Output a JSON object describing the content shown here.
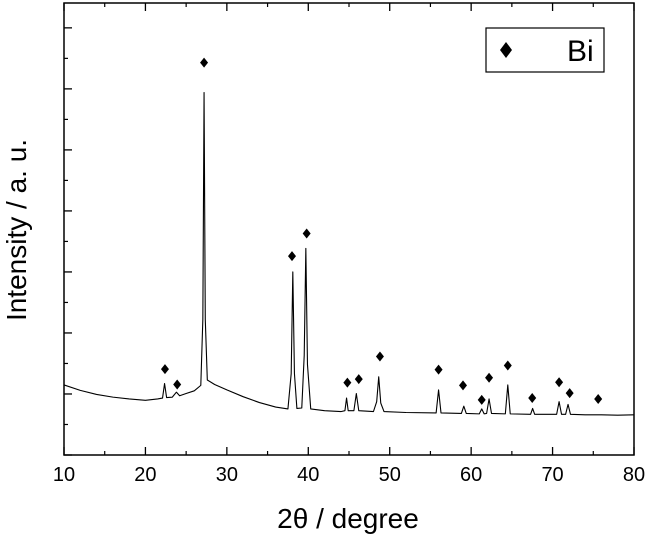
{
  "chart_data": {
    "type": "line",
    "xlabel": "2θ / degree",
    "ylabel": "Intensity / a. u.",
    "xlim": [
      10,
      80
    ],
    "ylim": [
      0,
      100
    ],
    "x_ticks": [
      "10",
      "20",
      "30",
      "40",
      "50",
      "60",
      "70",
      "80"
    ],
    "y_tick_labels_shown": false,
    "grid": false,
    "legend": {
      "position": "top-right",
      "entries": [
        {
          "marker": "diamond",
          "label": "Bi"
        }
      ]
    },
    "series": [
      {
        "style": "line",
        "points": [
          [
            10,
            15.5
          ],
          [
            12,
            14.3
          ],
          [
            14,
            13.4
          ],
          [
            16,
            12.8
          ],
          [
            18,
            12.4
          ],
          [
            20,
            12.1
          ],
          [
            21.5,
            12.4
          ],
          [
            22.1,
            12.6
          ],
          [
            22.35,
            15.8
          ],
          [
            22.6,
            12.7
          ],
          [
            23.3,
            12.8
          ],
          [
            23.8,
            13.9
          ],
          [
            24.2,
            13.1
          ],
          [
            25,
            13.6
          ],
          [
            26,
            14.2
          ],
          [
            26.8,
            15.4
          ],
          [
            27.05,
            30.0
          ],
          [
            27.2,
            80.2
          ],
          [
            27.35,
            30.0
          ],
          [
            27.6,
            16.6
          ],
          [
            28.5,
            15.6
          ],
          [
            30,
            14.4
          ],
          [
            32,
            12.9
          ],
          [
            34,
            11.6
          ],
          [
            36,
            10.6
          ],
          [
            37.5,
            10.2
          ],
          [
            37.9,
            18.0
          ],
          [
            38.1,
            40.5
          ],
          [
            38.3,
            18.0
          ],
          [
            38.6,
            10.3
          ],
          [
            39.2,
            10.4
          ],
          [
            39.5,
            22.0
          ],
          [
            39.7,
            45.7
          ],
          [
            39.9,
            20.0
          ],
          [
            40.3,
            10.2
          ],
          [
            42,
            9.8
          ],
          [
            44,
            9.6
          ],
          [
            44.5,
            9.8
          ],
          [
            44.7,
            12.6
          ],
          [
            44.9,
            9.8
          ],
          [
            45.6,
            9.8
          ],
          [
            45.9,
            13.6
          ],
          [
            46.2,
            9.8
          ],
          [
            48,
            9.6
          ],
          [
            48.4,
            11.8
          ],
          [
            48.65,
            17.3
          ],
          [
            48.9,
            11.5
          ],
          [
            49.3,
            9.6
          ],
          [
            52,
            9.4
          ],
          [
            55.7,
            9.3
          ],
          [
            56.0,
            14.4
          ],
          [
            56.3,
            9.3
          ],
          [
            58.8,
            9.2
          ],
          [
            59.1,
            10.8
          ],
          [
            59.4,
            9.2
          ],
          [
            61.0,
            9.1
          ],
          [
            61.3,
            10.2
          ],
          [
            61.6,
            9.1
          ],
          [
            61.9,
            9.2
          ],
          [
            62.2,
            12.4
          ],
          [
            62.5,
            9.2
          ],
          [
            64.2,
            9.1
          ],
          [
            64.5,
            15.5
          ],
          [
            64.8,
            9.1
          ],
          [
            67.3,
            9.0
          ],
          [
            67.55,
            10.3
          ],
          [
            67.8,
            9.0
          ],
          [
            70.5,
            9.0
          ],
          [
            70.8,
            11.8
          ],
          [
            71.1,
            9.0
          ],
          [
            71.6,
            9.0
          ],
          [
            71.9,
            11.2
          ],
          [
            72.2,
            9.0
          ],
          [
            74,
            8.9
          ],
          [
            76,
            8.9
          ],
          [
            78,
            8.8
          ],
          [
            80,
            8.9
          ]
        ]
      },
      {
        "name": "Bi",
        "style": "diamond-marker",
        "points": [
          [
            22.4,
            19.0
          ],
          [
            23.9,
            15.6
          ],
          [
            27.2,
            86.8
          ],
          [
            38.0,
            44.0
          ],
          [
            39.8,
            49.0
          ],
          [
            44.8,
            16.0
          ],
          [
            46.2,
            16.8
          ],
          [
            48.8,
            21.8
          ],
          [
            56.0,
            18.9
          ],
          [
            59.0,
            15.4
          ],
          [
            61.3,
            12.2
          ],
          [
            62.2,
            17.1
          ],
          [
            64.5,
            19.8
          ],
          [
            67.5,
            12.6
          ],
          [
            70.8,
            16.1
          ],
          [
            72.1,
            13.7
          ],
          [
            75.6,
            12.4
          ]
        ]
      }
    ]
  }
}
